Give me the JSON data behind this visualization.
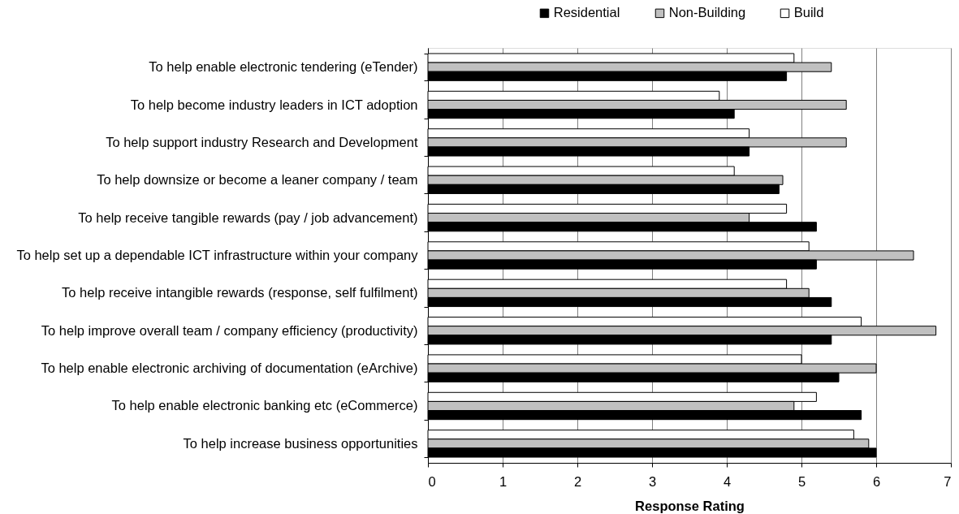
{
  "chart_data": {
    "type": "bar",
    "orientation": "horizontal",
    "categories": [
      "To help enable electronic tendering (eTender)",
      "To help become industry leaders in ICT adoption",
      "To help support industry Research and Development",
      "To help downsize or become a leaner company / team",
      "To help receive tangible rewards (pay / job advancement)",
      "To help set up a dependable ICT infrastructure within your company",
      "To help receive intangible rewards (response, self fulfilment)",
      "To help improve overall team / company efficiency (productivity)",
      "To help enable electronic archiving of documentation (eArchive)",
      "To help enable electronic banking etc (eCommerce)",
      "To help increase business opportunities"
    ],
    "series": [
      {
        "name": "Build",
        "color": "#ffffff",
        "values": [
          4.9,
          3.9,
          4.3,
          4.1,
          4.8,
          5.1,
          4.8,
          5.8,
          5.0,
          5.2,
          5.7
        ]
      },
      {
        "name": "Non-Building",
        "color": "#c0c0c0",
        "values": [
          5.4,
          5.6,
          5.6,
          4.75,
          4.3,
          6.5,
          5.1,
          6.8,
          6.0,
          4.9,
          5.9
        ]
      },
      {
        "name": "Residential",
        "color": "#000000",
        "values": [
          4.8,
          4.1,
          4.3,
          4.7,
          5.2,
          5.2,
          5.4,
          5.4,
          5.5,
          5.8,
          6.0
        ]
      }
    ],
    "xlabel": "Response Rating",
    "xlim": [
      0,
      7
    ],
    "xticks": [
      0,
      1,
      2,
      3,
      4,
      5,
      6,
      7
    ],
    "grid": "x",
    "legend": "top"
  }
}
